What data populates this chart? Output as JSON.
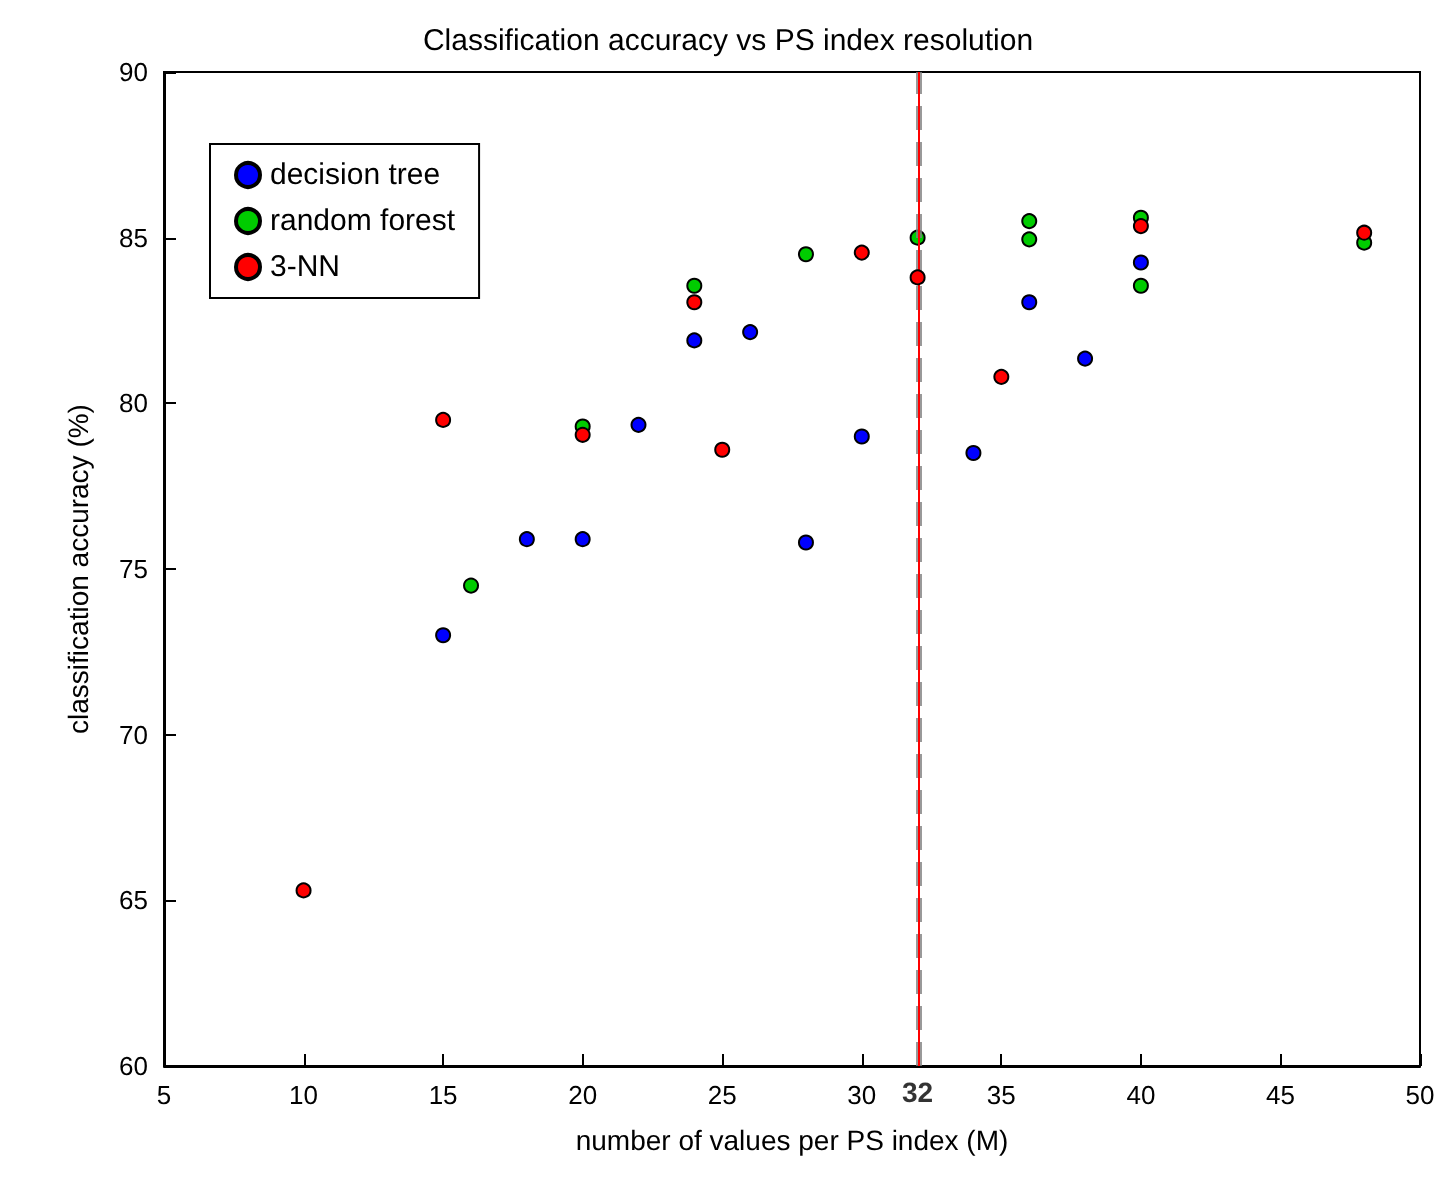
{
  "chart_data": {
    "type": "scatter",
    "title": "Classification accuracy vs PS index resolution",
    "xlabel": "number of values per PS index (M)",
    "ylabel": "classification accuracy (%)",
    "xlim": [
      5,
      50
    ],
    "xticks": [
      5,
      10,
      15,
      20,
      25,
      30,
      35,
      40,
      45,
      50
    ],
    "ylim": [
      60,
      90
    ],
    "yticks": [
      60,
      65,
      70,
      75,
      80,
      85,
      90
    ],
    "grid": false,
    "legend": "top left",
    "marker": "circle",
    "series": [
      {
        "name": "decision tree",
        "color": "#0000ff",
        "x": [
          15,
          18,
          20,
          22,
          24,
          26,
          28,
          30,
          32,
          34,
          36,
          38,
          40
        ],
        "values": [
          73.0,
          75.9,
          75.9,
          79.35,
          81.9,
          82.15,
          75.8,
          79.0,
          null,
          78.5,
          83.05,
          81.35,
          84.25
        ]
      },
      {
        "name": "random forest",
        "color": "#00cc00",
        "x": [
          16,
          20,
          24,
          28,
          32,
          36,
          36,
          40,
          40,
          48
        ],
        "values": [
          74.5,
          79.3,
          83.55,
          84.5,
          85.0,
          85.5,
          84.95,
          85.6,
          83.55,
          84.85
        ]
      },
      {
        "name": "3-NN",
        "color": "#ff0000",
        "x": [
          10,
          15,
          20,
          24,
          25,
          30,
          32,
          35,
          40,
          48
        ],
        "values": [
          65.3,
          79.5,
          79.05,
          83.05,
          78.6,
          84.55,
          83.8,
          80.8,
          85.35,
          85.15
        ]
      }
    ],
    "ref_lines": [
      {
        "axis": "x",
        "value": 32,
        "color": "#808080",
        "line_style": "dashed",
        "label": "32"
      },
      {
        "axis": "x",
        "value": 32,
        "color": "#ff0000",
        "line_style": "solid"
      }
    ]
  }
}
